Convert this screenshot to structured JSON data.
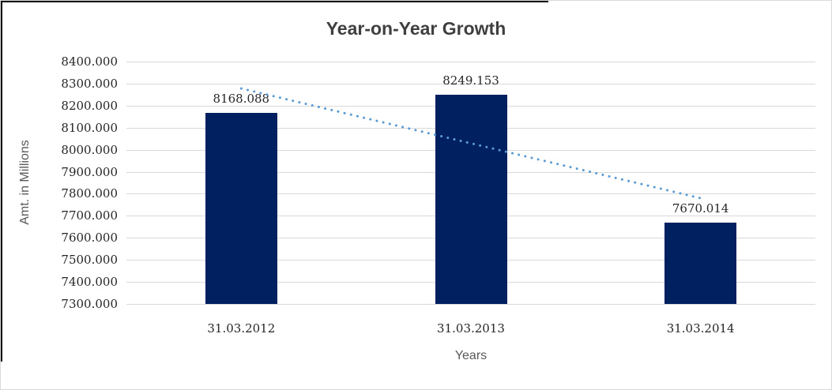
{
  "chart_data": {
    "type": "bar",
    "title": "Year-on-Year Growth",
    "xlabel": "Years",
    "ylabel": "Amt. in Millions",
    "categories": [
      "31.03.2012",
      "31.03.2013",
      "31.03.2014"
    ],
    "values": [
      8168.088,
      8249.153,
      7670.014
    ],
    "data_labels": [
      "8168.088",
      "8249.153",
      "7670.014"
    ],
    "ylim": [
      7300,
      8400
    ],
    "y_tick_step": 100,
    "y_tick_labels": [
      "8400.000",
      "8300.000",
      "8200.000",
      "8100.000",
      "8000.000",
      "7900.000",
      "7800.000",
      "7700.000",
      "7600.000",
      "7500.000",
      "7400.000",
      "7300.000"
    ],
    "grid": true,
    "legend": "none",
    "trendline": {
      "type": "linear",
      "style": "dotted",
      "values_at_categories": [
        8278.1,
        8029.1,
        7780.0
      ]
    },
    "colors": {
      "bar": "#002060",
      "trendline": "#5B9BD5",
      "gridline": "#D9D9D9",
      "title": "#3F3F3F",
      "text": "#262626",
      "axis_title": "#595959"
    }
  }
}
